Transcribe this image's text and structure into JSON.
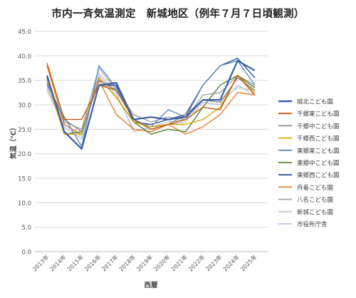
{
  "chart_data": {
    "type": "line",
    "title": "市内一斉気温測定　新城地区（例年７月７日頃観測）",
    "xlabel": "西暦",
    "ylabel": "気温（℃）",
    "ylim": [
      0,
      45
    ],
    "yticks": [
      "0.0",
      "5.0",
      "10.0",
      "15.0",
      "20.0",
      "25.0",
      "30.0",
      "35.0",
      "40.0",
      "45.0"
    ],
    "categories": [
      "2013年",
      "2014年",
      "2015年",
      "2016年",
      "2017年",
      "2018年",
      "2019年",
      "2020年",
      "2021年",
      "2022年",
      "2023年",
      "2024年",
      "2025年"
    ],
    "grid": true,
    "legend_position": "right",
    "series": [
      {
        "name": "城北こども園",
        "color": "#3c5fa8",
        "width": 2.2,
        "values": [
          36.0,
          24.5,
          21.0,
          34.0,
          34.5,
          27.0,
          27.5,
          27.0,
          27.5,
          31.0,
          31.0,
          39.0,
          37.0
        ]
      },
      {
        "name": "千郷東こども園",
        "color": "#c55a11",
        "width": 1.4,
        "values": [
          38.5,
          27.0,
          27.0,
          34.0,
          33.0,
          27.0,
          25.0,
          26.0,
          27.0,
          29.5,
          29.0,
          36.0,
          32.0
        ]
      },
      {
        "name": "千郷中こども園",
        "color": "#8c8c8c",
        "width": 1.4,
        "values": [
          34.5,
          27.0,
          24.5,
          35.0,
          33.0,
          27.0,
          25.0,
          26.0,
          28.0,
          31.0,
          30.5,
          35.5,
          33.0
        ]
      },
      {
        "name": "千郷西こども園",
        "color": "#d8a800",
        "width": 1.4,
        "values": [
          35.0,
          24.0,
          24.0,
          35.5,
          31.5,
          26.5,
          25.5,
          26.0,
          26.0,
          27.0,
          29.5,
          36.0,
          32.5
        ]
      },
      {
        "name": "東郷東こども園",
        "color": "#5b8cc7",
        "width": 1.4,
        "values": [
          34.0,
          27.5,
          21.5,
          38.0,
          33.5,
          27.0,
          25.5,
          29.0,
          27.5,
          34.0,
          38.0,
          39.0,
          34.0
        ]
      },
      {
        "name": "東郷中こども園",
        "color": "#548235",
        "width": 1.4,
        "values": [
          35.5,
          24.0,
          24.5,
          35.5,
          31.5,
          26.5,
          24.0,
          25.0,
          24.5,
          29.5,
          34.0,
          36.0,
          33.5
        ]
      },
      {
        "name": "東郷西こども園",
        "color": "#2f5597",
        "width": 1.4,
        "values": [
          36.0,
          24.5,
          21.0,
          34.0,
          34.0,
          26.5,
          26.0,
          27.0,
          28.0,
          34.0,
          38.0,
          39.5,
          35.5
        ]
      },
      {
        "name": "舟着こども園",
        "color": "#ed7d31",
        "width": 1.4,
        "values": [
          38.0,
          26.0,
          24.0,
          35.0,
          28.0,
          25.0,
          24.5,
          26.0,
          24.0,
          25.5,
          28.0,
          32.5,
          32.0
        ]
      },
      {
        "name": "八名こども園",
        "color": "#a5a5a5",
        "width": 1.4,
        "values": [
          34.5,
          26.5,
          25.0,
          37.5,
          33.0,
          28.0,
          26.5,
          27.5,
          27.0,
          32.0,
          32.5,
          36.0,
          34.0
        ]
      },
      {
        "name": "新城こども園",
        "color": "#c9c9c9",
        "width": 1.4,
        "values": [
          33.5,
          26.0,
          23.5,
          36.5,
          32.5,
          24.5,
          25.5,
          26.5,
          27.0,
          31.0,
          31.0,
          33.5,
          33.0
        ]
      },
      {
        "name": "市役所庁舎",
        "color": "#b4c7e7",
        "width": 1.4,
        "values": [
          33.0,
          25.5,
          23.0,
          36.0,
          32.0,
          25.0,
          25.0,
          26.0,
          26.5,
          30.5,
          30.0,
          34.0,
          32.0
        ]
      }
    ]
  }
}
